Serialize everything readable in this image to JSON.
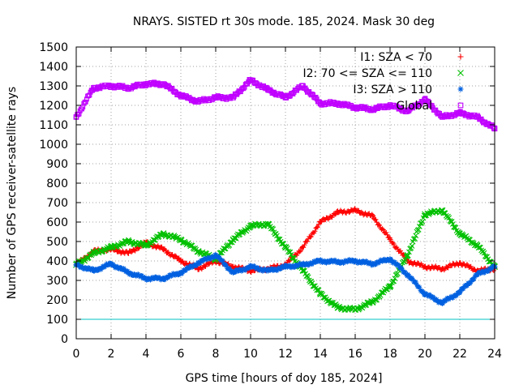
{
  "chart_data": {
    "type": "scatter",
    "title": "NRAYS. SISTED rt 30s mode. 185, 2024. Mask 30 deg",
    "xlabel": "GPS time [hours of doy 185, 2024]",
    "ylabel": "Number of GPS receiver-satellite rays",
    "xlim": [
      0,
      24
    ],
    "ylim": [
      0,
      1500
    ],
    "x_ticks": [
      "0",
      "2",
      "4",
      "6",
      "8",
      "10",
      "12",
      "14",
      "16",
      "18",
      "20",
      "22",
      "24"
    ],
    "y_ticks": [
      "0",
      "100",
      "200",
      "300",
      "400",
      "500",
      "600",
      "700",
      "800",
      "900",
      "1000",
      "1100",
      "1200",
      "1300",
      "1400",
      "1500"
    ],
    "grid": true,
    "legend_position": "top-right",
    "threshold_line": {
      "value": 100,
      "color": "#00c0c0"
    },
    "series": [
      {
        "name": "I1: SZA < 70",
        "marker": "plus",
        "color": "#ff0000",
        "x": [
          0,
          1,
          2,
          3,
          4,
          5,
          6,
          7,
          8,
          9,
          10,
          11,
          12,
          13,
          14,
          15,
          16,
          17,
          18,
          19,
          20,
          21,
          22,
          23,
          24
        ],
        "y": [
          380,
          450,
          460,
          440,
          495,
          460,
          400,
          360,
          400,
          370,
          350,
          360,
          380,
          470,
          600,
          650,
          660,
          630,
          510,
          400,
          370,
          360,
          390,
          350,
          360
        ]
      },
      {
        "name": "I2: 70 <= SZA <= 110",
        "marker": "cross",
        "color": "#00c000",
        "x": [
          0,
          1,
          2,
          3,
          4,
          5,
          6,
          7,
          8,
          9,
          10,
          11,
          12,
          13,
          14,
          15,
          16,
          17,
          18,
          19,
          20,
          21,
          22,
          23,
          24
        ],
        "y": [
          380,
          440,
          470,
          500,
          480,
          540,
          510,
          450,
          410,
          510,
          580,
          590,
          470,
          350,
          230,
          160,
          150,
          190,
          270,
          430,
          640,
          660,
          540,
          480,
          370
        ]
      },
      {
        "name": "I3: SZA > 110",
        "marker": "star",
        "color": "#0060e0",
        "x": [
          0,
          1,
          2,
          3,
          4,
          5,
          6,
          7,
          8,
          9,
          10,
          11,
          12,
          13,
          14,
          15,
          16,
          17,
          18,
          19,
          20,
          21,
          22,
          23,
          24
        ],
        "y": [
          380,
          350,
          385,
          340,
          310,
          310,
          340,
          390,
          430,
          340,
          370,
          350,
          370,
          380,
          400,
          395,
          400,
          385,
          410,
          330,
          230,
          185,
          240,
          330,
          370
        ]
      },
      {
        "name": "Global",
        "marker": "square",
        "color": "#c000ff",
        "x": [
          0,
          1,
          2,
          3,
          4,
          5,
          6,
          7,
          8,
          9,
          10,
          11,
          12,
          13,
          14,
          15,
          16,
          17,
          18,
          19,
          20,
          21,
          22,
          23,
          24
        ],
        "y": [
          1140,
          1290,
          1300,
          1290,
          1310,
          1310,
          1250,
          1220,
          1240,
          1240,
          1330,
          1280,
          1240,
          1300,
          1210,
          1210,
          1190,
          1180,
          1200,
          1170,
          1230,
          1140,
          1160,
          1140,
          1080
        ]
      }
    ]
  }
}
